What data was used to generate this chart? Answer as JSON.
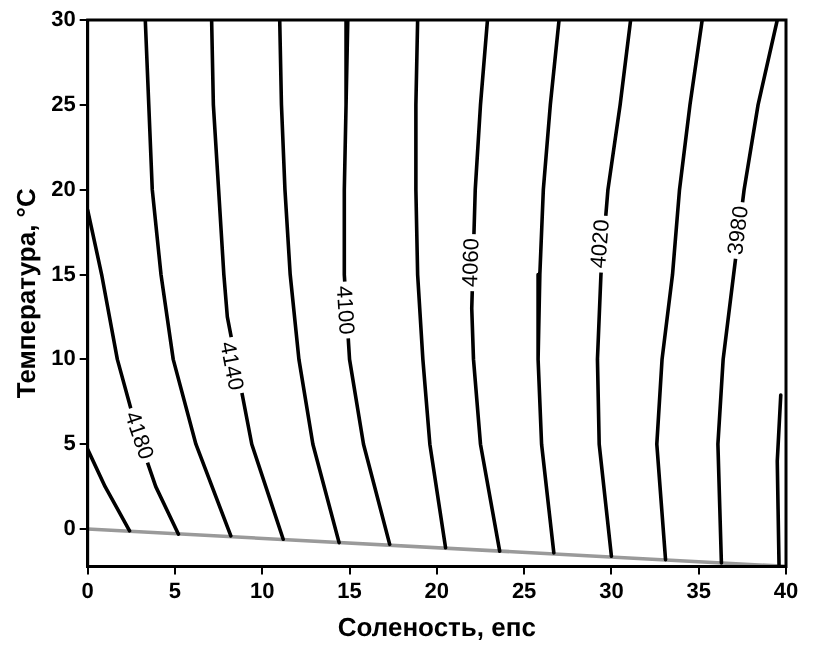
{
  "chart_data": {
    "type": "line",
    "xlabel": "Соленость, епс",
    "ylabel": "Температура, °C",
    "xlim": [
      0,
      40
    ],
    "xticks": [
      0,
      5,
      10,
      15,
      20,
      25,
      30,
      35,
      40
    ],
    "ylim": [
      -2.2,
      30
    ],
    "yticks": [
      0,
      5,
      10,
      15,
      20,
      25,
      30
    ],
    "grid": false,
    "legend": false,
    "marker": "none",
    "line_style": "solid",
    "series": [
      {
        "color": "#000000",
        "x": [
          0,
          1.0,
          2.4
        ],
        "values": [
          4.7,
          2.5,
          -0.1
        ]
      },
      {
        "color": "#000000",
        "x": [
          0,
          0.8,
          1.7,
          2.9,
          3.9,
          5.2
        ],
        "values": [
          18.8,
          15,
          10,
          5.5,
          2.5,
          -0.3
        ]
      },
      {
        "color": "#000000",
        "x": [
          3.3,
          3.5,
          3.7,
          4.2,
          4.9,
          6.2,
          8.2
        ],
        "values": [
          30,
          25,
          20,
          15,
          10,
          5,
          -0.4
        ]
      },
      {
        "color": "#000000",
        "x": [
          7.1,
          7.2,
          7.5,
          7.8,
          8.0,
          9.4,
          11.2
        ],
        "values": [
          30,
          25,
          20,
          15,
          12.5,
          5,
          -0.6
        ]
      },
      {
        "color": "#000000",
        "x": [
          11.0,
          11.1,
          11.3,
          11.6,
          12.1,
          12.9,
          14.4
        ],
        "values": [
          30,
          25,
          20,
          15,
          10,
          5,
          -0.8
        ]
      },
      {
        "color": "#000000",
        "x": [
          14.9,
          14.8,
          14.7,
          14.7,
          15.0,
          15.8,
          17.3
        ],
        "values": [
          30,
          25,
          20,
          15,
          10,
          5,
          -0.9
        ]
      },
      {
        "color": "#000000",
        "x": [
          18.9,
          18.8,
          18.8,
          18.9,
          19.2,
          19.6,
          20.5
        ],
        "values": [
          30,
          25,
          20,
          15,
          10,
          5,
          -1.1
        ]
      },
      {
        "color": "#000000",
        "x": [
          22.9,
          22.5,
          22.2,
          22.0,
          22.1,
          22.5,
          23.6
        ],
        "values": [
          30,
          25,
          20,
          13,
          10,
          5,
          -1.3
        ]
      },
      {
        "color": "#000000",
        "x": [
          27.0,
          26.5,
          26.1,
          25.9,
          25.8,
          26.0,
          26.7
        ],
        "values": [
          30,
          25,
          20,
          15,
          10,
          5,
          -1.4
        ]
      },
      {
        "color": "#000000",
        "x": [
          31.1,
          30.5,
          29.8,
          29.4,
          29.2,
          29.3,
          30.0
        ],
        "values": [
          30,
          25,
          20,
          15,
          10,
          5,
          -1.6
        ]
      },
      {
        "color": "#000000",
        "x": [
          35.2,
          34.5,
          33.9,
          33.5,
          32.9,
          32.6,
          33.1
        ],
        "values": [
          30,
          25,
          20,
          15,
          10,
          5,
          -1.8
        ]
      },
      {
        "color": "#000000",
        "x": [
          39.5,
          38.4,
          37.6,
          37.0,
          36.4,
          36.1,
          36.3
        ],
        "values": [
          30,
          25,
          20,
          15,
          10,
          5,
          -2.0
        ]
      },
      {
        "color": "#000000",
        "x": [
          39.7,
          39.5,
          39.6
        ],
        "values": [
          7.9,
          4,
          -2.1
        ]
      },
      {
        "color": "#9a9a9a",
        "x": [
          0,
          40
        ],
        "values": [
          0,
          -2.2
        ]
      }
    ],
    "annotations": [
      {
        "text": "4180",
        "x": 2.9,
        "y": 5.5
      },
      {
        "text": "4140",
        "x": 8.2,
        "y": 9.6
      },
      {
        "text": "4100",
        "x": 14.7,
        "y": 12.9
      },
      {
        "text": "4060",
        "x": 22.0,
        "y": 15.7
      },
      {
        "text": "4020",
        "x": 29.4,
        "y": 16.8
      },
      {
        "text": "3980",
        "x": 37.3,
        "y": 17.6
      }
    ]
  }
}
